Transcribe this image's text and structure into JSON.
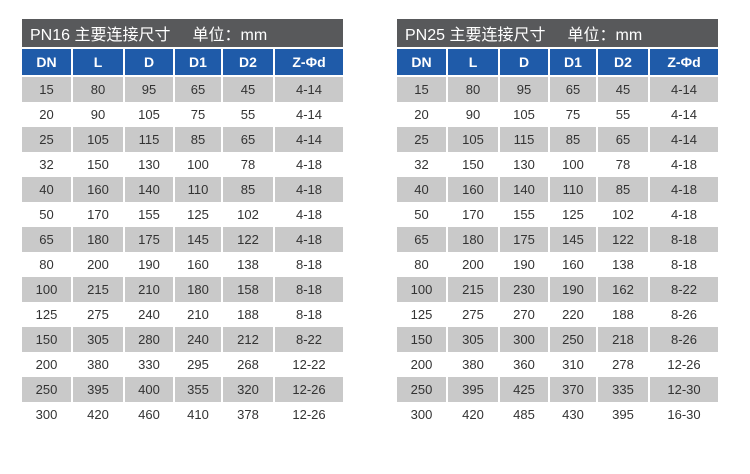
{
  "colors": {
    "title_bar_bg": "#58595b",
    "header_row_bg": "#1f5ba9",
    "alt_row_bg": "#c9c9c9",
    "row_bg": "#ffffff",
    "header_text": "#ffffff",
    "cell_text": "#333333"
  },
  "tables": [
    {
      "title": "PN16 主要连接尺寸",
      "unit": "单位：mm",
      "columns": [
        "DN",
        "L",
        "D",
        "D1",
        "D2",
        "Z-Φd"
      ],
      "rows": [
        [
          "15",
          "80",
          "95",
          "65",
          "45",
          "4-14"
        ],
        [
          "20",
          "90",
          "105",
          "75",
          "55",
          "4-14"
        ],
        [
          "25",
          "105",
          "115",
          "85",
          "65",
          "4-14"
        ],
        [
          "32",
          "150",
          "130",
          "100",
          "78",
          "4-18"
        ],
        [
          "40",
          "160",
          "140",
          "110",
          "85",
          "4-18"
        ],
        [
          "50",
          "170",
          "155",
          "125",
          "102",
          "4-18"
        ],
        [
          "65",
          "180",
          "175",
          "145",
          "122",
          "4-18"
        ],
        [
          "80",
          "200",
          "190",
          "160",
          "138",
          "8-18"
        ],
        [
          "100",
          "215",
          "210",
          "180",
          "158",
          "8-18"
        ],
        [
          "125",
          "275",
          "240",
          "210",
          "188",
          "8-18"
        ],
        [
          "150",
          "305",
          "280",
          "240",
          "212",
          "8-22"
        ],
        [
          "200",
          "380",
          "330",
          "295",
          "268",
          "12-22"
        ],
        [
          "250",
          "395",
          "400",
          "355",
          "320",
          "12-26"
        ],
        [
          "300",
          "420",
          "460",
          "410",
          "378",
          "12-26"
        ]
      ]
    },
    {
      "title": "PN25 主要连接尺寸",
      "unit": "单位：mm",
      "columns": [
        "DN",
        "L",
        "D",
        "D1",
        "D2",
        "Z-Φd"
      ],
      "rows": [
        [
          "15",
          "80",
          "95",
          "65",
          "45",
          "4-14"
        ],
        [
          "20",
          "90",
          "105",
          "75",
          "55",
          "4-14"
        ],
        [
          "25",
          "105",
          "115",
          "85",
          "65",
          "4-14"
        ],
        [
          "32",
          "150",
          "130",
          "100",
          "78",
          "4-18"
        ],
        [
          "40",
          "160",
          "140",
          "110",
          "85",
          "4-18"
        ],
        [
          "50",
          "170",
          "155",
          "125",
          "102",
          "4-18"
        ],
        [
          "65",
          "180",
          "175",
          "145",
          "122",
          "8-18"
        ],
        [
          "80",
          "200",
          "190",
          "160",
          "138",
          "8-18"
        ],
        [
          "100",
          "215",
          "230",
          "190",
          "162",
          "8-22"
        ],
        [
          "125",
          "275",
          "270",
          "220",
          "188",
          "8-26"
        ],
        [
          "150",
          "305",
          "300",
          "250",
          "218",
          "8-26"
        ],
        [
          "200",
          "380",
          "360",
          "310",
          "278",
          "12-26"
        ],
        [
          "250",
          "395",
          "425",
          "370",
          "335",
          "12-30"
        ],
        [
          "300",
          "420",
          "485",
          "430",
          "395",
          "16-30"
        ]
      ]
    }
  ]
}
